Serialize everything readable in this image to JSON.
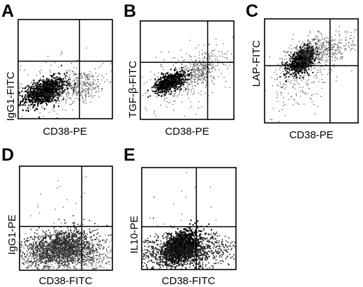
{
  "chart_data": [
    {
      "type": "scatter",
      "panel_label": "A",
      "xlabel": "CD38-PE",
      "ylabel": "IgG1-FITC",
      "xlim": [
        0,
        100
      ],
      "ylim": [
        0,
        100
      ],
      "quadrant_gate": {
        "x": 65,
        "y": 58
      },
      "clusters": [
        {
          "x": 28,
          "y": 27,
          "sx": 11,
          "sy": 7,
          "rho": 0.45,
          "n": 900,
          "density": "dense"
        },
        {
          "x": 66,
          "y": 33,
          "sx": 14,
          "sy": 8,
          "rho": 0.3,
          "n": 300,
          "density": "sparse"
        },
        {
          "x": 40,
          "y": 30,
          "sx": 30,
          "sy": 15,
          "rho": 0.2,
          "n": 260,
          "density": "sparse"
        }
      ]
    },
    {
      "type": "scatter",
      "panel_label": "B",
      "xlabel": "CD38-PE",
      "ylabel": "TGF-β-FITC",
      "xlim": [
        0,
        100
      ],
      "ylim": [
        0,
        100
      ],
      "quadrant_gate": {
        "x": 72,
        "y": 58
      },
      "clusters": [
        {
          "x": 32,
          "y": 38,
          "sx": 8,
          "sy": 5,
          "rho": 0.5,
          "n": 700,
          "density": "dense"
        },
        {
          "x": 65,
          "y": 50,
          "sx": 12,
          "sy": 10,
          "rho": 0.6,
          "n": 330,
          "density": "sparse"
        },
        {
          "x": 45,
          "y": 40,
          "sx": 28,
          "sy": 16,
          "rho": 0.3,
          "n": 250,
          "density": "sparse"
        }
      ]
    },
    {
      "type": "scatter",
      "panel_label": "C",
      "xlabel": "CD38-PE",
      "ylabel": "LAP-FITC",
      "xlim": [
        0,
        100
      ],
      "ylim": [
        0,
        100
      ],
      "quadrant_gate": {
        "x": 70,
        "y": 55
      },
      "clusters": [
        {
          "x": 40,
          "y": 60,
          "sx": 7,
          "sy": 6,
          "rho": 0.55,
          "n": 700,
          "density": "dense"
        },
        {
          "x": 60,
          "y": 70,
          "sx": 18,
          "sy": 8,
          "rho": 0.5,
          "n": 420,
          "density": "sparse"
        },
        {
          "x": 42,
          "y": 48,
          "sx": 20,
          "sy": 18,
          "rho": 0.5,
          "n": 320,
          "density": "sparse"
        }
      ]
    },
    {
      "type": "scatter",
      "panel_label": "D",
      "xlabel": "CD38-FITC",
      "ylabel": "IgG1-PE",
      "xlim": [
        0,
        100
      ],
      "ylim": [
        0,
        100
      ],
      "quadrant_gate": {
        "x": 67,
        "y": 42
      },
      "clusters": [
        {
          "x": 45,
          "y": 22,
          "sx": 18,
          "sy": 9,
          "rho": 0.2,
          "n": 1400,
          "density": "medium"
        },
        {
          "x": 50,
          "y": 15,
          "sx": 30,
          "sy": 8,
          "rho": 0.0,
          "n": 900,
          "density": "sparse"
        },
        {
          "x": 40,
          "y": 45,
          "sx": 25,
          "sy": 25,
          "rho": 0.0,
          "n": 40,
          "density": "sparse"
        }
      ]
    },
    {
      "type": "scatter",
      "panel_label": "E",
      "xlabel": "CD38-FITC",
      "ylabel": "IL10-PE",
      "xlim": [
        0,
        100
      ],
      "ylim": [
        0,
        100
      ],
      "quadrant_gate": {
        "x": 58,
        "y": 42
      },
      "clusters": [
        {
          "x": 43,
          "y": 22,
          "sx": 10,
          "sy": 8,
          "rho": 0.35,
          "n": 1200,
          "density": "dense"
        },
        {
          "x": 45,
          "y": 17,
          "sx": 28,
          "sy": 9,
          "rho": 0.1,
          "n": 1000,
          "density": "medium"
        },
        {
          "x": 40,
          "y": 50,
          "sx": 25,
          "sy": 25,
          "rho": 0.0,
          "n": 40,
          "density": "sparse"
        }
      ]
    }
  ]
}
